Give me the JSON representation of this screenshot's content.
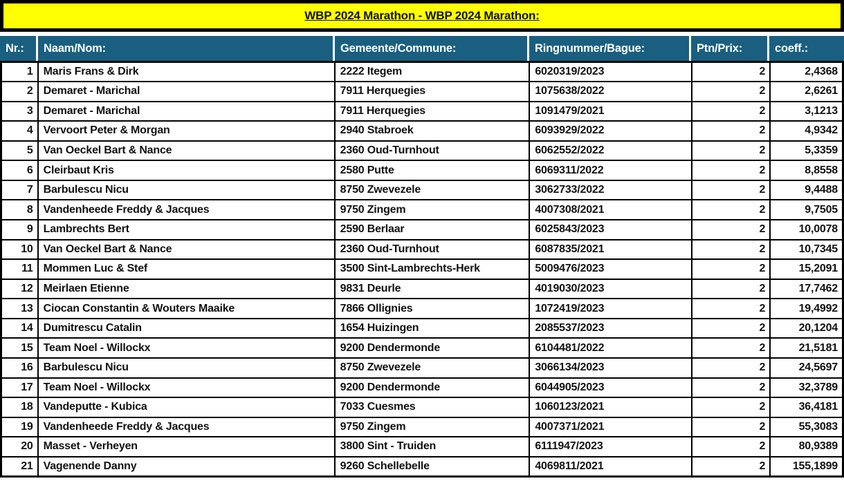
{
  "title": "WBP 2024 Marathon - WBP 2024 Marathon:",
  "colors": {
    "title_bg": "#ffff00",
    "title_text": "#111111",
    "header_bg": "#1a5f7f",
    "header_text": "#ffffff",
    "border": "#000000",
    "row_bg": "#ffffff"
  },
  "table": {
    "columns": [
      {
        "key": "nr",
        "label": "Nr.:",
        "align": "right"
      },
      {
        "key": "naam",
        "label": "Naam/Nom:",
        "align": "left"
      },
      {
        "key": "gemeente",
        "label": "Gemeente/Commune:",
        "align": "left"
      },
      {
        "key": "ring",
        "label": "Ringnummer/Bague:",
        "align": "left"
      },
      {
        "key": "ptn",
        "label": "Ptn/Prix:",
        "align": "right"
      },
      {
        "key": "coeff",
        "label": "coeff.:",
        "align": "right"
      }
    ],
    "rows": [
      [
        "1",
        "Maris Frans & Dirk",
        "2222 Itegem",
        "6020319/2023",
        "2",
        "2,4368"
      ],
      [
        "2",
        "Demaret - Marichal",
        "7911 Herquegies",
        "1075638/2022",
        "2",
        "2,6261"
      ],
      [
        "3",
        "Demaret - Marichal",
        "7911 Herquegies",
        "1091479/2021",
        "2",
        "3,1213"
      ],
      [
        "4",
        "Vervoort Peter & Morgan",
        "2940 Stabroek",
        "6093929/2022",
        "2",
        "4,9342"
      ],
      [
        "5",
        "Van Oeckel Bart & Nance",
        "2360 Oud-Turnhout",
        "6062552/2022",
        "2",
        "5,3359"
      ],
      [
        "6",
        "Cleirbaut Kris",
        "2580 Putte",
        "6069311/2022",
        "2",
        "8,8558"
      ],
      [
        "7",
        "Barbulescu Nicu",
        "8750 Zwevezele",
        "3062733/2022",
        "2",
        "9,4488"
      ],
      [
        "8",
        "Vandenheede Freddy & Jacques",
        "9750 Zingem",
        "4007308/2021",
        "2",
        "9,7505"
      ],
      [
        "9",
        "Lambrechts Bert",
        "2590 Berlaar",
        "6025843/2023",
        "2",
        "10,0078"
      ],
      [
        "10",
        "Van Oeckel Bart & Nance",
        "2360 Oud-Turnhout",
        "6087835/2021",
        "2",
        "10,7345"
      ],
      [
        "11",
        "Mommen Luc & Stef",
        "3500 Sint-Lambrechts-Herk",
        "5009476/2023",
        "2",
        "15,2091"
      ],
      [
        "12",
        "Meirlaen Etienne",
        "9831 Deurle",
        "4019030/2023",
        "2",
        "17,7462"
      ],
      [
        "13",
        "Ciocan Constantin & Wouters Maaike",
        "7866 Ollignies",
        "1072419/2023",
        "2",
        "19,4992"
      ],
      [
        "14",
        "Dumitrescu Catalin",
        "1654 Huizingen",
        "2085537/2023",
        "2",
        "20,1204"
      ],
      [
        "15",
        "Team Noel - Willockx",
        "9200 Dendermonde",
        "6104481/2022",
        "2",
        "21,5181"
      ],
      [
        "16",
        "Barbulescu Nicu",
        "8750 Zwevezele",
        "3066134/2023",
        "2",
        "24,5697"
      ],
      [
        "17",
        "Team Noel - Willockx",
        "9200 Dendermonde",
        "6044905/2023",
        "2",
        "32,3789"
      ],
      [
        "18",
        "Vandeputte - Kubica",
        "7033 Cuesmes",
        "1060123/2021",
        "2",
        "36,4181"
      ],
      [
        "19",
        "Vandenheede Freddy & Jacques",
        "9750 Zingem",
        "4007371/2021",
        "2",
        "55,3083"
      ],
      [
        "20",
        "Masset - Verheyen",
        "3800 Sint - Truiden",
        "6111947/2023",
        "2",
        "80,9389"
      ],
      [
        "21",
        "Vagenende Danny",
        "9260 Schellebelle",
        "4069811/2021",
        "2",
        "155,1899"
      ]
    ]
  }
}
